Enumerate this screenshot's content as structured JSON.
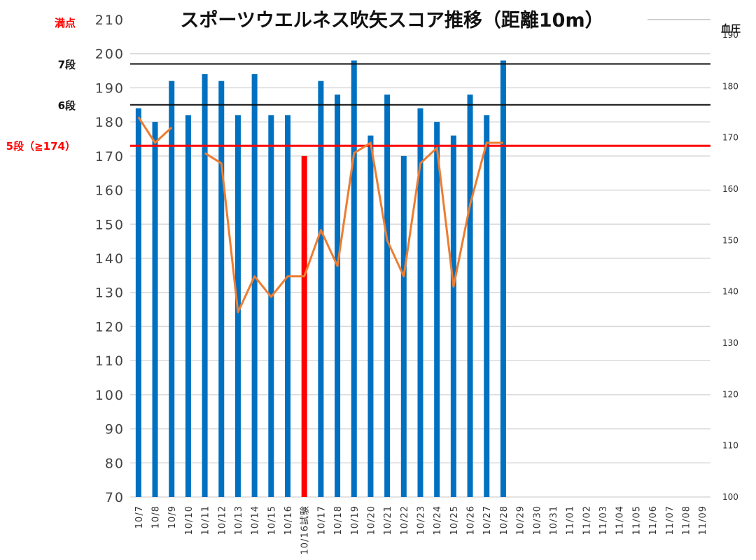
{
  "chart_data": {
    "type": "bar",
    "title": "スポーツウエルネス吹矢スコア推移（距離10m）",
    "y2label": "血圧",
    "ylim": [
      70,
      210
    ],
    "yticks": [
      70,
      80,
      90,
      100,
      110,
      120,
      130,
      140,
      150,
      160,
      170,
      180,
      190,
      200,
      210
    ],
    "y2lim": [
      100,
      193
    ],
    "y2ticks": [
      100,
      110,
      120,
      130,
      140,
      150,
      160,
      170,
      180,
      190
    ],
    "grid": true,
    "categories": [
      "10/7",
      "10/8",
      "10/9",
      "10/10",
      "10/11",
      "10/12",
      "10/13",
      "10/14",
      "10/15",
      "10/16",
      "10/16試験",
      "10/17",
      "10/18",
      "10/19",
      "10/20",
      "10/21",
      "10/22",
      "10/23",
      "10/24",
      "10/25",
      "10/26",
      "10/27",
      "10/28",
      "10/29",
      "10/30",
      "10/31",
      "11/01",
      "11/02",
      "11/03",
      "11/04",
      "11/05",
      "11/06",
      "11/07",
      "11/08",
      "11/09"
    ],
    "series": [
      {
        "type": "bar",
        "axis": "left",
        "values": [
          184,
          180,
          192,
          182,
          194,
          192,
          182,
          194,
          182,
          182,
          170,
          192,
          188,
          198,
          176,
          188,
          170,
          184,
          180,
          176,
          188,
          182,
          198,
          null,
          null,
          null,
          null,
          null,
          null,
          null,
          null,
          null,
          null,
          null,
          null
        ]
      },
      {
        "type": "line",
        "axis": "right",
        "values": [
          174,
          169,
          172,
          null,
          167,
          165,
          136,
          143,
          139,
          143,
          143,
          152,
          145,
          167,
          169,
          150,
          143,
          165,
          168,
          141,
          157,
          169,
          169,
          null,
          null,
          null,
          null,
          null,
          null,
          null,
          null,
          null,
          null,
          null,
          null
        ]
      }
    ],
    "reference_lines": [
      {
        "label": "満点",
        "value": 210,
        "color": "#ff0000"
      },
      {
        "label": "7段",
        "value": 197,
        "color": "#111111"
      },
      {
        "label": "6段",
        "value": 185,
        "color": "#111111"
      },
      {
        "label": "5段（≧174）",
        "value": 173,
        "color": "#ff0000"
      }
    ],
    "colors": {
      "bar": "#0070c0",
      "bar_highlight": "#ff0000",
      "line": "#ed7d31",
      "grid": "#d9d9d9"
    }
  }
}
